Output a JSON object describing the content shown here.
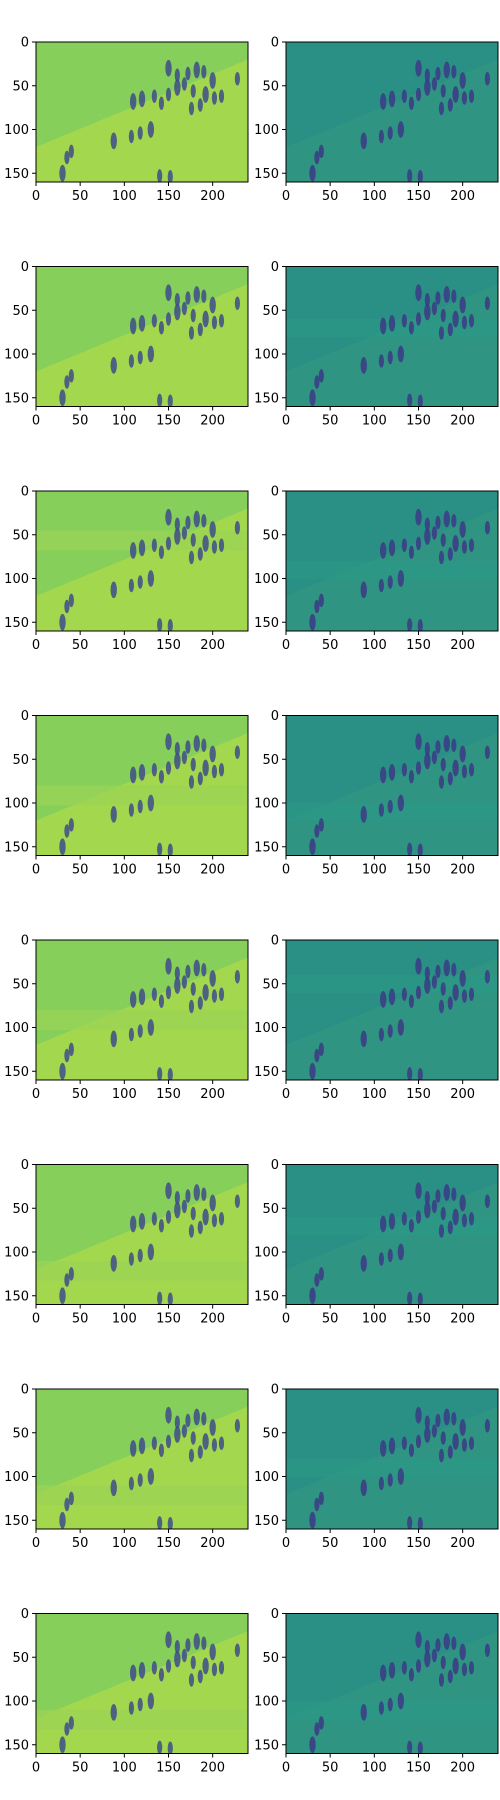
{
  "grid": {
    "rows": 8,
    "cols": 2
  },
  "axes": {
    "x_ticks": [
      "0",
      "50",
      "100",
      "150",
      "200"
    ],
    "y_ticks": [
      "0",
      "50",
      "100",
      "150"
    ],
    "x_range": [
      0,
      240
    ],
    "y_range": [
      160,
      0
    ]
  },
  "colormap": "viridis",
  "panel_styles": {
    "left": {
      "background": "#86cf5a",
      "band": "#b2dd48",
      "shadow": "#3f4c8a"
    },
    "right": {
      "background": "#2a8f84",
      "band": "#39a07f",
      "shadow": "#3b3b85"
    }
  },
  "rows": [
    {
      "left_gap": "",
      "right_gap": ""
    },
    {
      "left_gap": "",
      "right_gap": "band"
    },
    {
      "left_gap": "top",
      "right_gap": "band"
    },
    {
      "left_gap": "mid",
      "right_gap": "band"
    },
    {
      "left_gap": "mid",
      "right_gap": "band"
    },
    {
      "left_gap": "low",
      "right_gap": "band"
    },
    {
      "left_gap": "low",
      "right_gap": "band"
    },
    {
      "left_gap": "low",
      "right_gap": "band"
    }
  ]
}
